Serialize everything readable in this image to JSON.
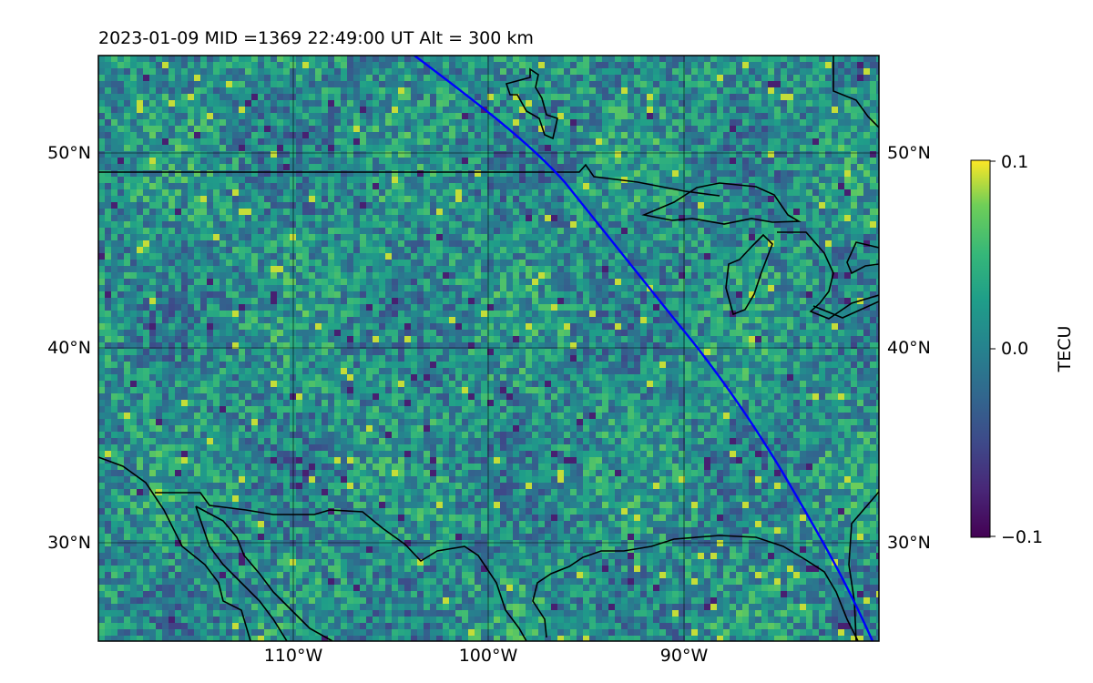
{
  "title": "2023-01-09  MID =1369    22:49:00  UT  Alt = 300 km",
  "map": {
    "lon_range": [
      -120,
      -80
    ],
    "lat_range": [
      25,
      55
    ],
    "lon_ticks": [
      -110,
      -100,
      -90
    ],
    "lon_tick_labels": [
      "110°W",
      "100°W",
      "90°W"
    ],
    "lat_ticks": [
      30,
      40,
      50
    ],
    "lat_tick_labels": [
      "30°N",
      "40°N",
      "50°N"
    ],
    "gridlines": true
  },
  "colorbar": {
    "label": "TECU",
    "min": -0.1,
    "max": 0.1,
    "ticks": [
      0.1,
      0.0,
      -0.1
    ],
    "tick_labels": [
      "0.1",
      "0.0",
      "−0.1"
    ],
    "colormap": "viridis"
  },
  "terminator_color": "#0000ff",
  "coast_color": "#000000"
}
